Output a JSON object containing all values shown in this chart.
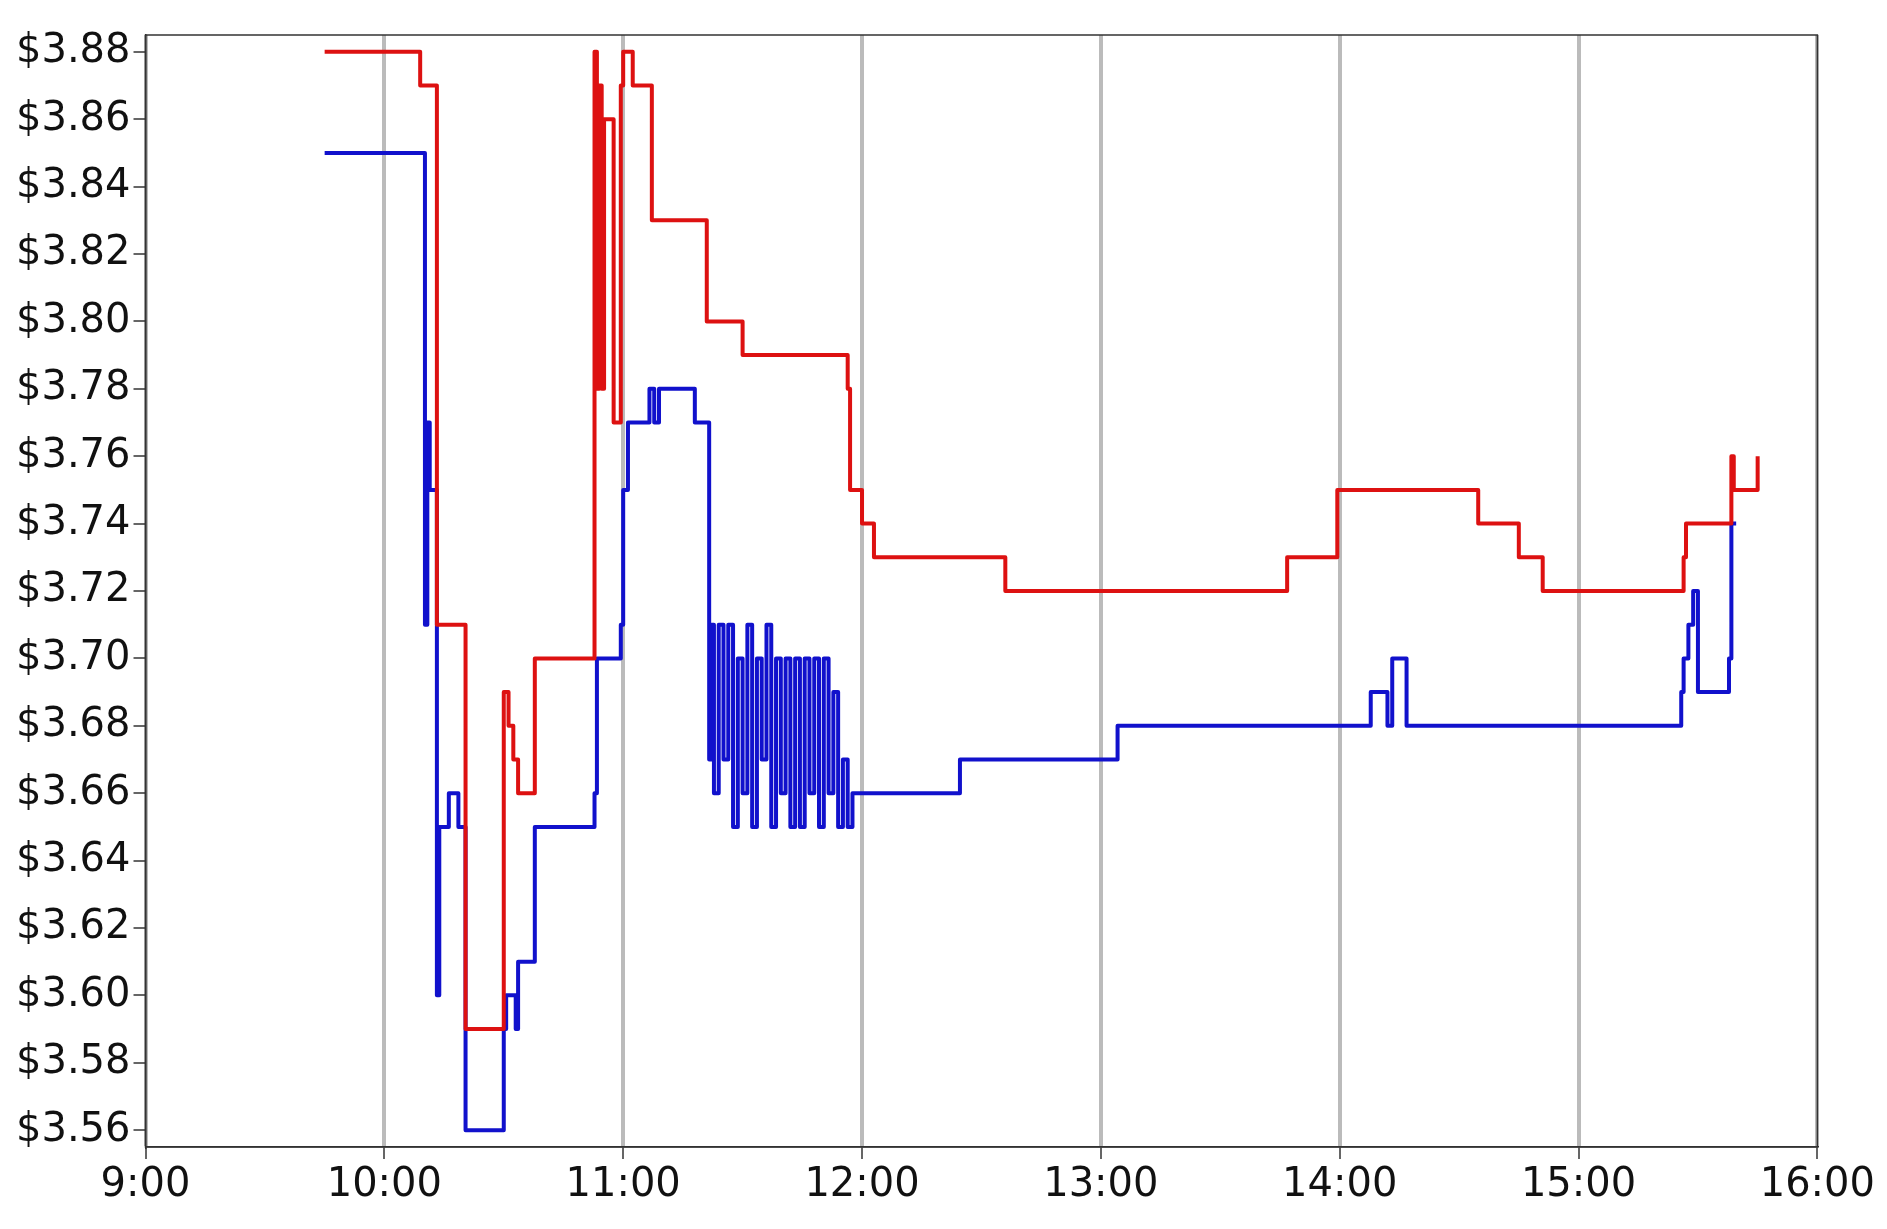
{
  "chart_data": {
    "type": "step",
    "xlim": [
      9,
      16
    ],
    "xticks": [
      {
        "value": 9,
        "label": "9:00"
      },
      {
        "value": 10,
        "label": "10:00"
      },
      {
        "value": 11,
        "label": "11:00"
      },
      {
        "value": 12,
        "label": "12:00"
      },
      {
        "value": 13,
        "label": "13:00"
      },
      {
        "value": 14,
        "label": "14:00"
      },
      {
        "value": 15,
        "label": "15:00"
      },
      {
        "value": 16,
        "label": "16:00"
      }
    ],
    "ylim": [
      3.555,
      3.885
    ],
    "yticks": [
      {
        "value": 3.56,
        "label": "$3.56"
      },
      {
        "value": 3.58,
        "label": "$3.58"
      },
      {
        "value": 3.6,
        "label": "$3.60"
      },
      {
        "value": 3.62,
        "label": "$3.62"
      },
      {
        "value": 3.64,
        "label": "$3.64"
      },
      {
        "value": 3.66,
        "label": "$3.66"
      },
      {
        "value": 3.68,
        "label": "$3.68"
      },
      {
        "value": 3.7,
        "label": "$3.70"
      },
      {
        "value": 3.72,
        "label": "$3.72"
      },
      {
        "value": 3.74,
        "label": "$3.74"
      },
      {
        "value": 3.76,
        "label": "$3.76"
      },
      {
        "value": 3.78,
        "label": "$3.78"
      },
      {
        "value": 3.8,
        "label": "$3.80"
      },
      {
        "value": 3.82,
        "label": "$3.82"
      },
      {
        "value": 3.84,
        "label": "$3.84"
      },
      {
        "value": 3.86,
        "label": "$3.86"
      },
      {
        "value": 3.88,
        "label": "$3.88"
      }
    ],
    "grid": "x",
    "legend": false,
    "line_style": "solid",
    "marker": "none",
    "series": [
      {
        "color": "#dd1111",
        "x": [
          9.75,
          10.15,
          10.22,
          10.34,
          10.5,
          10.52,
          10.54,
          10.56,
          10.63,
          10.88,
          10.89,
          10.9,
          10.91,
          10.92,
          10.96,
          10.99,
          11.0,
          11.04,
          11.12,
          11.35,
          11.5,
          11.94,
          11.95,
          12.0,
          12.05,
          12.6,
          13.78,
          13.99,
          14.58,
          14.75,
          14.85,
          15.44,
          15.45,
          15.64,
          15.65,
          15.75
        ],
        "values": [
          3.88,
          3.87,
          3.71,
          3.59,
          3.69,
          3.68,
          3.67,
          3.66,
          3.7,
          3.88,
          3.78,
          3.87,
          3.78,
          3.86,
          3.77,
          3.87,
          3.88,
          3.87,
          3.83,
          3.8,
          3.79,
          3.78,
          3.75,
          3.74,
          3.73,
          3.72,
          3.73,
          3.75,
          3.74,
          3.73,
          3.72,
          3.73,
          3.74,
          3.76,
          3.75,
          3.76
        ]
      },
      {
        "color": "#1111cc",
        "x": [
          9.75,
          10.17,
          10.18,
          10.19,
          10.22,
          10.23,
          10.27,
          10.31,
          10.34,
          10.5,
          10.51,
          10.55,
          10.56,
          10.63,
          10.88,
          10.89,
          10.99,
          11.0,
          11.02,
          11.11,
          11.13,
          11.15,
          11.3,
          11.36,
          11.37,
          11.38,
          11.4,
          11.42,
          11.44,
          11.46,
          11.48,
          11.5,
          11.52,
          11.54,
          11.56,
          11.58,
          11.6,
          11.62,
          11.64,
          11.66,
          11.68,
          11.7,
          11.72,
          11.74,
          11.76,
          11.78,
          11.8,
          11.82,
          11.84,
          11.86,
          11.88,
          11.9,
          11.92,
          11.94,
          11.96,
          12.41,
          13.07,
          14.13,
          14.2,
          14.22,
          14.28,
          15.43,
          15.44,
          15.46,
          15.48,
          15.5,
          15.52,
          15.63,
          15.64,
          15.66
        ],
        "values": [
          3.85,
          3.71,
          3.77,
          3.75,
          3.6,
          3.65,
          3.66,
          3.65,
          3.56,
          3.59,
          3.6,
          3.59,
          3.61,
          3.65,
          3.66,
          3.7,
          3.71,
          3.75,
          3.77,
          3.78,
          3.77,
          3.78,
          3.77,
          3.67,
          3.71,
          3.66,
          3.71,
          3.67,
          3.71,
          3.65,
          3.7,
          3.66,
          3.71,
          3.65,
          3.7,
          3.67,
          3.71,
          3.65,
          3.7,
          3.66,
          3.7,
          3.65,
          3.7,
          3.65,
          3.7,
          3.66,
          3.7,
          3.65,
          3.7,
          3.66,
          3.69,
          3.65,
          3.67,
          3.65,
          3.66,
          3.67,
          3.68,
          3.69,
          3.68,
          3.7,
          3.68,
          3.69,
          3.7,
          3.71,
          3.72,
          3.69,
          3.69,
          3.7,
          3.74,
          3.74
        ]
      }
    ]
  }
}
